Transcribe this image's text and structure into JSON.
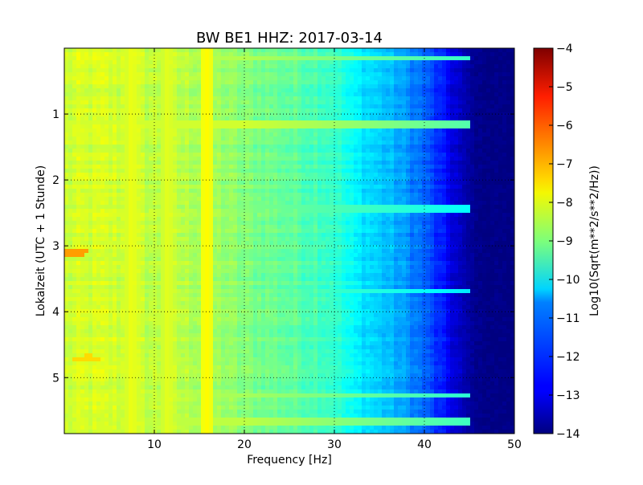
{
  "chart_data": {
    "type": "heatmap",
    "title": "BW BE1 HHZ: 2017-03-14",
    "xlabel": "Frequency [Hz]",
    "ylabel": "Lokalzeit (UTC + 1 Stunde)",
    "xlim": [
      0,
      50
    ],
    "ylim": [
      0,
      5.85
    ],
    "y_inverted": true,
    "x_ticks": [
      10,
      20,
      30,
      40,
      50
    ],
    "x_tick_labels": [
      "10",
      "20",
      "30",
      "40",
      "50"
    ],
    "y_ticks": [
      1,
      2,
      3,
      4,
      5
    ],
    "y_tick_labels": [
      "1",
      "2",
      "3",
      "4",
      "5"
    ],
    "grid": true,
    "colormap": "jet",
    "colorbar": {
      "label": "Log10(Sqrt(m**2/s**2/Hz))",
      "range": [
        -14,
        -4
      ],
      "ticks": [
        -4,
        -5,
        -6,
        -7,
        -8,
        -9,
        -10,
        -11,
        -12,
        -13,
        -14
      ],
      "tick_labels": [
        "−4",
        "−5",
        "−6",
        "−7",
        "−8",
        "−9",
        "−10",
        "−11",
        "−12",
        "−13",
        "−14"
      ]
    },
    "spectrum_profile": {
      "frequency_hz": [
        0,
        2,
        5,
        8,
        10,
        12,
        14,
        16,
        18,
        20,
        22,
        25,
        28,
        30,
        31,
        32,
        34,
        36,
        38,
        40,
        41,
        42,
        43,
        44,
        45,
        46,
        50
      ],
      "log10_amplitude": [
        -8.3,
        -8.2,
        -8.2,
        -8.3,
        -8.4,
        -8.4,
        -8.5,
        -8.6,
        -8.8,
        -9.0,
        -9.1,
        -9.3,
        -9.5,
        -9.7,
        -10.0,
        -10.3,
        -10.6,
        -10.9,
        -11.3,
        -11.8,
        -12.2,
        -12.6,
        -13.0,
        -13.4,
        -13.7,
        -13.9,
        -14.0
      ]
    },
    "horizontal_bands": [
      {
        "time_h": 0.15,
        "log10_amplitude": -8.5
      },
      {
        "time_h": 1.15,
        "log10_amplitude": -8.2
      },
      {
        "time_h": 2.45,
        "log10_amplitude": -9.0
      },
      {
        "time_h": 3.7,
        "log10_amplitude": -9.2
      },
      {
        "time_h": 5.28,
        "log10_amplitude": -8.6
      },
      {
        "time_h": 5.68,
        "log10_amplitude": -8.4
      }
    ],
    "vertical_bands": [
      {
        "frequency_hz": 7.5,
        "log10_amplitude": -7.9
      },
      {
        "frequency_hz": 11.5,
        "log10_amplitude": -8.0
      },
      {
        "frequency_hz": 15.8,
        "log10_amplitude": -7.7
      }
    ],
    "hotspots": [
      {
        "frequency_hz": 1.2,
        "time_h": 3.1,
        "log10_amplitude": -6.8
      },
      {
        "frequency_hz": 2.6,
        "time_h": 4.72,
        "log10_amplitude": -7.4
      }
    ]
  }
}
